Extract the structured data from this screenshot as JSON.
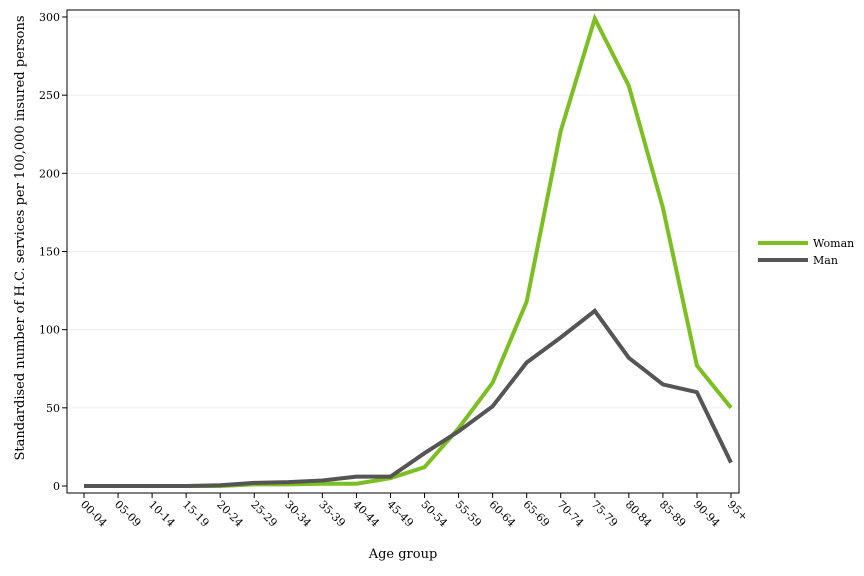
{
  "chart_data": {
    "type": "line",
    "title": "",
    "xlabel": "Age group",
    "ylabel": "Standardised number of H.C. services per 100,000 insured persons",
    "categories": [
      "00-04",
      "05-09",
      "10-14",
      "15-19",
      "20-24",
      "25-29",
      "30-34",
      "35-39",
      "40-44",
      "45-49",
      "50-54",
      "55-59",
      "60-64",
      "65-69",
      "70-74",
      "75-79",
      "80-84",
      "85-89",
      "90-94",
      "95+"
    ],
    "ylim": [
      0,
      300
    ],
    "yticks": [
      0,
      50,
      100,
      150,
      200,
      250,
      300
    ],
    "grid": true,
    "legend_position": "right",
    "series": [
      {
        "name": "Woman",
        "color": "#7cbf21",
        "values": [
          0,
          0,
          0,
          0,
          0,
          1,
          1,
          1.5,
          1.5,
          5,
          12,
          37,
          66,
          118,
          227,
          299,
          256,
          178,
          77,
          50
        ]
      },
      {
        "name": "Man",
        "color": "#555555",
        "values": [
          0,
          0,
          0,
          0,
          0.5,
          2,
          2.5,
          3.5,
          6,
          6,
          21,
          35,
          51,
          79,
          95,
          112,
          82,
          65,
          60,
          15
        ]
      }
    ]
  }
}
